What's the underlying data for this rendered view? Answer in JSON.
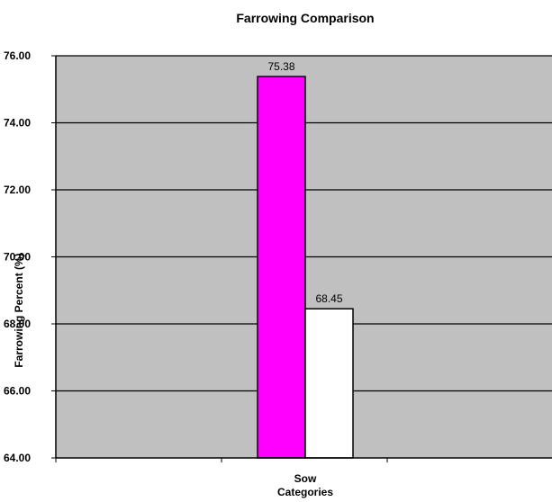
{
  "chart_data": {
    "type": "bar",
    "title": "Farrowing Comparison",
    "xlabel_line1": "Sow",
    "xlabel_line2": "Categories",
    "ylabel": "Farrowing Percent (%)",
    "ylim": [
      64,
      76
    ],
    "yticks": [
      "76.00",
      "74.00",
      "72.00",
      "70.00",
      "68.00",
      "66.00",
      "64.00"
    ],
    "grid": true,
    "legend": "none",
    "series": [
      {
        "values": [
          75.38
        ],
        "color": "#ff00ff",
        "label": "75.38"
      },
      {
        "values": [
          68.45
        ],
        "color": "#ffffff",
        "label": "68.45"
      }
    ],
    "plot_background": "#c0c0c0"
  }
}
